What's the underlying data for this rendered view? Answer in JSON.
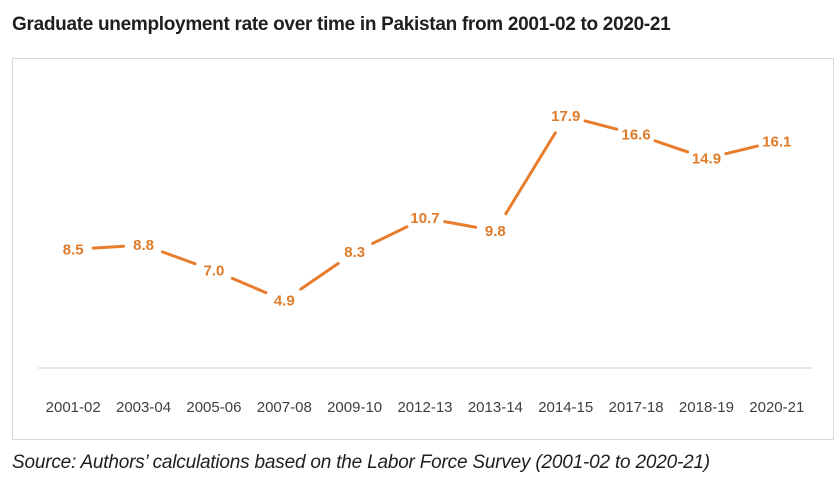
{
  "title": "Graduate unemployment rate over time in Pakistan from 2001-02 to 2020-21",
  "source": "Source: Authors’ calculations based on the Labor Force Survey (2001-02 to 2020-21)",
  "colors": {
    "line": "#e87d2e",
    "label": "#e07b2a",
    "axis": "#d0d0d0"
  },
  "chart_data": {
    "type": "line",
    "categories": [
      "2001-02",
      "2003-04",
      "2005-06",
      "2007-08",
      "2009-10",
      "2012-13",
      "2013-14",
      "2014-15",
      "2017-18",
      "2018-19",
      "2020-21"
    ],
    "values": [
      8.5,
      8.8,
      7.0,
      4.9,
      8.3,
      10.7,
      9.8,
      17.9,
      16.6,
      14.9,
      16.1
    ],
    "data_labels": [
      "8.5",
      "8.8",
      "7.0",
      "4.9",
      "8.3",
      "10.7",
      "9.8",
      "17.9",
      "16.6",
      "14.9",
      "16.1"
    ],
    "title": "Graduate unemployment rate over time in Pakistan from 2001-02 to 2020-21",
    "xlabel": "",
    "ylabel": "",
    "ylim": [
      0,
      20
    ],
    "grid": false,
    "legend": "none"
  }
}
